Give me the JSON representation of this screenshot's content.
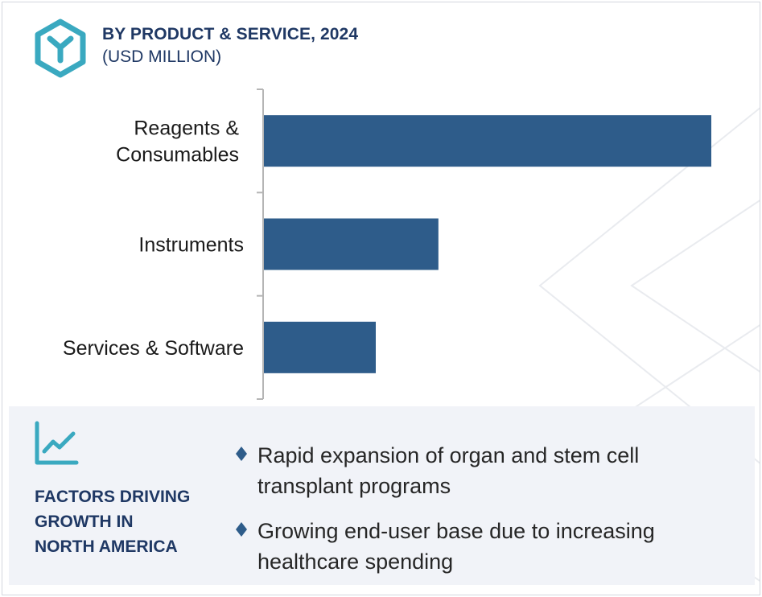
{
  "header": {
    "title": "BY PRODUCT & SERVICE, 2024",
    "subtitle": "(USD MILLION)"
  },
  "colors": {
    "bar": "#2e5c8a",
    "title": "#1f3864",
    "logo": "#3aa9c0",
    "bullet": "#2e5c8a",
    "panel": "#f1f3f8"
  },
  "chart_data": {
    "type": "bar",
    "orientation": "horizontal",
    "categories": [
      "Reagents & Consumables",
      "Instruments",
      "Services & Software"
    ],
    "category_lines": [
      [
        "Reagents &",
        "Consumables"
      ],
      [
        "Instruments"
      ],
      [
        "Services & Software"
      ]
    ],
    "values": [
      100,
      39,
      25
    ],
    "title": "BY PRODUCT & SERVICE, 2024",
    "subtitle": "(USD MILLION)",
    "xlim": [
      0,
      100
    ],
    "value_axis_visible": false,
    "grid": false,
    "legend": "none"
  },
  "factors": {
    "title": "FACTORS DRIVING\nGROWTH IN\nNORTH AMERICA",
    "icon": "trend-line-chart-icon",
    "items": [
      "Rapid expansion of organ and stem cell transplant programs",
      "Growing end-user base due to increasing healthcare spending"
    ]
  }
}
